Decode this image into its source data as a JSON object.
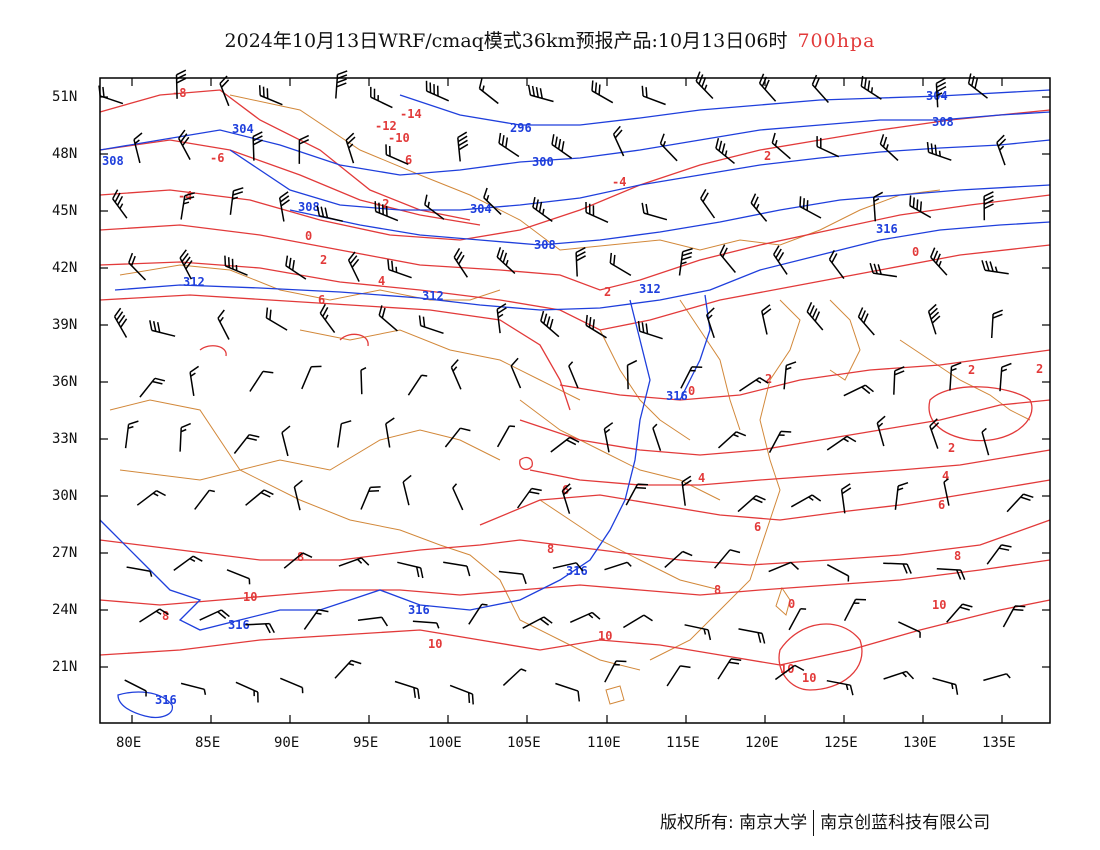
{
  "title": {
    "main": "2024年10月13日WRF/cmaq模式36km预报产品:10月13日06时",
    "level": "700hpa"
  },
  "colors": {
    "temperature_contour": "#e23a3a",
    "height_contour": "#1f3fdc",
    "boundary": "#d2883a",
    "wind_barb": "#000000"
  },
  "map": {
    "lon_range": [
      78,
      138
    ],
    "lat_range": [
      18,
      52
    ],
    "x_ticks": [
      "80E",
      "85E",
      "90E",
      "95E",
      "100E",
      "105E",
      "110E",
      "115E",
      "120E",
      "125E",
      "130E",
      "135E"
    ],
    "y_ticks": [
      "51N",
      "48N",
      "45N",
      "42N",
      "39N",
      "36N",
      "33N",
      "30N",
      "27N",
      "24N",
      "21N"
    ]
  },
  "labels": {
    "temperature": [
      "-14",
      "-12",
      "-10",
      "-8",
      "-6",
      "-4",
      "-2",
      "0",
      "2",
      "4",
      "6",
      "8",
      "10"
    ],
    "height": [
      "296",
      "300",
      "304",
      "308",
      "312",
      "316"
    ]
  },
  "footer": {
    "copyright": "版权所有: 南京大学",
    "company": "南京创蓝科技有限公司"
  }
}
